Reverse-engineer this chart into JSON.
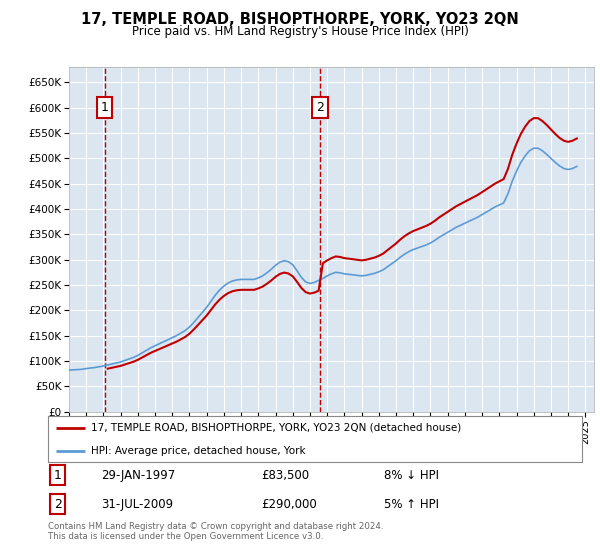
{
  "title": "17, TEMPLE ROAD, BISHOPTHORPE, YORK, YO23 2QN",
  "subtitle": "Price paid vs. HM Land Registry's House Price Index (HPI)",
  "plot_bg_color": "#dce6f1",
  "grid_color": "#ffffff",
  "ylim": [
    0,
    680000
  ],
  "yticks": [
    0,
    50000,
    100000,
    150000,
    200000,
    250000,
    300000,
    350000,
    400000,
    450000,
    500000,
    550000,
    600000,
    650000
  ],
  "ytick_labels": [
    "£0",
    "£50K",
    "£100K",
    "£150K",
    "£200K",
    "£250K",
    "£300K",
    "£350K",
    "£400K",
    "£450K",
    "£500K",
    "£550K",
    "£600K",
    "£650K"
  ],
  "xlim_start": 1995.0,
  "xlim_end": 2025.5,
  "xtick_years": [
    1995,
    1996,
    1997,
    1998,
    1999,
    2000,
    2001,
    2002,
    2003,
    2004,
    2005,
    2006,
    2007,
    2008,
    2009,
    2010,
    2011,
    2012,
    2013,
    2014,
    2015,
    2016,
    2017,
    2018,
    2019,
    2020,
    2021,
    2022,
    2023,
    2024,
    2025
  ],
  "hpi_color": "#5b9bd5",
  "price_color": "#c00000",
  "sale1_x": 1997.08,
  "sale1_y": 83500,
  "sale2_x": 2009.58,
  "sale2_y": 290000,
  "sale1_date": "29-JAN-1997",
  "sale1_price": "£83,500",
  "sale1_hpi": "8% ↓ HPI",
  "sale2_date": "31-JUL-2009",
  "sale2_price": "£290,000",
  "sale2_hpi": "5% ↑ HPI",
  "legend_line1": "17, TEMPLE ROAD, BISHOPTHORPE, YORK, YO23 2QN (detached house)",
  "legend_line2": "HPI: Average price, detached house, York",
  "footer": "Contains HM Land Registry data © Crown copyright and database right 2024.\nThis data is licensed under the Open Government Licence v3.0.",
  "hpi_data_x": [
    1995.0,
    1995.25,
    1995.5,
    1995.75,
    1996.0,
    1996.25,
    1996.5,
    1996.75,
    1997.0,
    1997.25,
    1997.5,
    1997.75,
    1998.0,
    1998.25,
    1998.5,
    1998.75,
    1999.0,
    1999.25,
    1999.5,
    1999.75,
    2000.0,
    2000.25,
    2000.5,
    2000.75,
    2001.0,
    2001.25,
    2001.5,
    2001.75,
    2002.0,
    2002.25,
    2002.5,
    2002.75,
    2003.0,
    2003.25,
    2003.5,
    2003.75,
    2004.0,
    2004.25,
    2004.5,
    2004.75,
    2005.0,
    2005.25,
    2005.5,
    2005.75,
    2006.0,
    2006.25,
    2006.5,
    2006.75,
    2007.0,
    2007.25,
    2007.5,
    2007.75,
    2008.0,
    2008.25,
    2008.5,
    2008.75,
    2009.0,
    2009.25,
    2009.5,
    2009.75,
    2010.0,
    2010.25,
    2010.5,
    2010.75,
    2011.0,
    2011.25,
    2011.5,
    2011.75,
    2012.0,
    2012.25,
    2012.5,
    2012.75,
    2013.0,
    2013.25,
    2013.5,
    2013.75,
    2014.0,
    2014.25,
    2014.5,
    2014.75,
    2015.0,
    2015.25,
    2015.5,
    2015.75,
    2016.0,
    2016.25,
    2016.5,
    2016.75,
    2017.0,
    2017.25,
    2017.5,
    2017.75,
    2018.0,
    2018.25,
    2018.5,
    2018.75,
    2019.0,
    2019.25,
    2019.5,
    2019.75,
    2020.0,
    2020.25,
    2020.5,
    2020.75,
    2021.0,
    2021.25,
    2021.5,
    2021.75,
    2022.0,
    2022.25,
    2022.5,
    2022.75,
    2023.0,
    2023.25,
    2023.5,
    2023.75,
    2024.0,
    2024.25,
    2024.5
  ],
  "hpi_data_y": [
    82000,
    82500,
    83000,
    83500,
    85000,
    86000,
    87000,
    88500,
    90000,
    92000,
    94000,
    96000,
    98000,
    101000,
    104000,
    107000,
    111000,
    116000,
    121000,
    126000,
    130000,
    134000,
    138000,
    142000,
    146000,
    150000,
    155000,
    160000,
    167000,
    176000,
    186000,
    196000,
    206000,
    218000,
    230000,
    240000,
    248000,
    254000,
    258000,
    260000,
    261000,
    261000,
    261000,
    261000,
    264000,
    268000,
    274000,
    281000,
    289000,
    295000,
    298000,
    296000,
    290000,
    278000,
    265000,
    256000,
    253000,
    255000,
    259000,
    263000,
    268000,
    272000,
    275000,
    274000,
    272000,
    271000,
    270000,
    269000,
    268000,
    269000,
    271000,
    273000,
    276000,
    280000,
    286000,
    292000,
    298000,
    305000,
    311000,
    316000,
    320000,
    323000,
    326000,
    329000,
    333000,
    338000,
    344000,
    349000,
    354000,
    359000,
    364000,
    368000,
    372000,
    376000,
    380000,
    384000,
    389000,
    394000,
    399000,
    404000,
    408000,
    412000,
    430000,
    455000,
    475000,
    492000,
    505000,
    515000,
    520000,
    520000,
    515000,
    508000,
    500000,
    492000,
    485000,
    480000,
    478000,
    480000,
    484000
  ]
}
